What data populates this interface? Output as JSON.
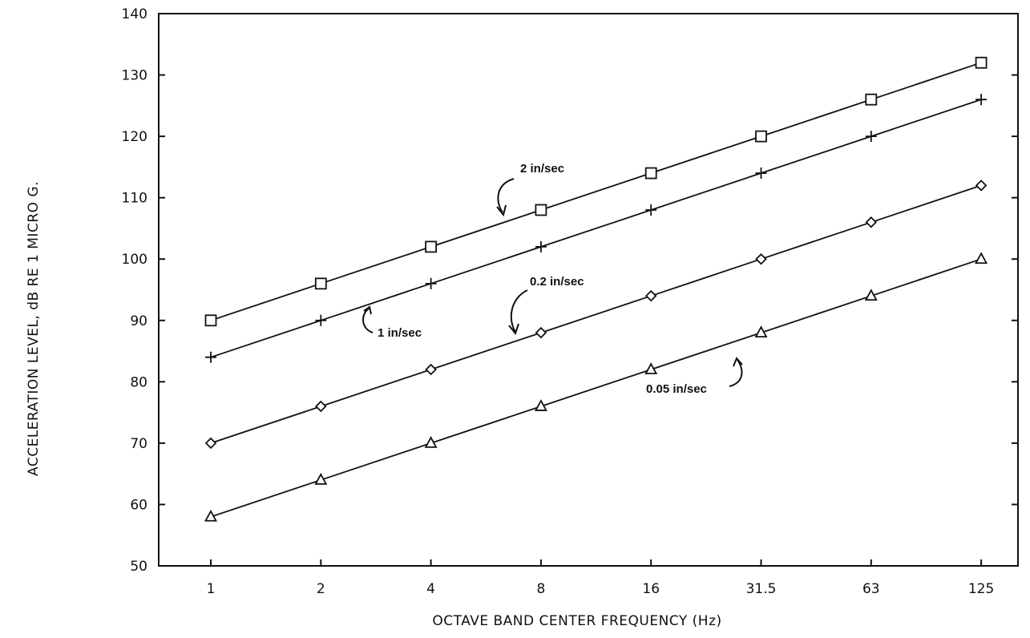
{
  "chart_data": {
    "type": "line",
    "xlabel": "OCTAVE BAND CENTER FREQUENCY (Hz)",
    "ylabel": "ACCELERATION LEVEL, dB RE 1 MICRO G.",
    "categories": [
      "1",
      "2",
      "4",
      "8",
      "16",
      "31.5",
      "63",
      "125"
    ],
    "ylim": [
      50,
      140
    ],
    "yticks": [
      50,
      60,
      70,
      80,
      90,
      100,
      110,
      120,
      130,
      140
    ],
    "grid": false,
    "legend": "none",
    "series": [
      {
        "name": "2 in/sec",
        "marker": "square",
        "values": [
          90,
          96,
          102,
          108,
          114,
          120,
          126,
          132
        ]
      },
      {
        "name": "1 in/sec",
        "marker": "plus",
        "values": [
          84,
          90,
          96,
          102,
          108,
          114,
          120,
          126
        ]
      },
      {
        "name": "0.2 in/sec",
        "marker": "diamond",
        "values": [
          70,
          76,
          82,
          88,
          94,
          100,
          106,
          112
        ]
      },
      {
        "name": "0.05 in/sec",
        "marker": "triangle",
        "values": [
          58,
          64,
          70,
          76,
          82,
          88,
          94,
          100
        ]
      }
    ],
    "colors": {
      "line": "#111111",
      "background": "#ffffff"
    }
  }
}
